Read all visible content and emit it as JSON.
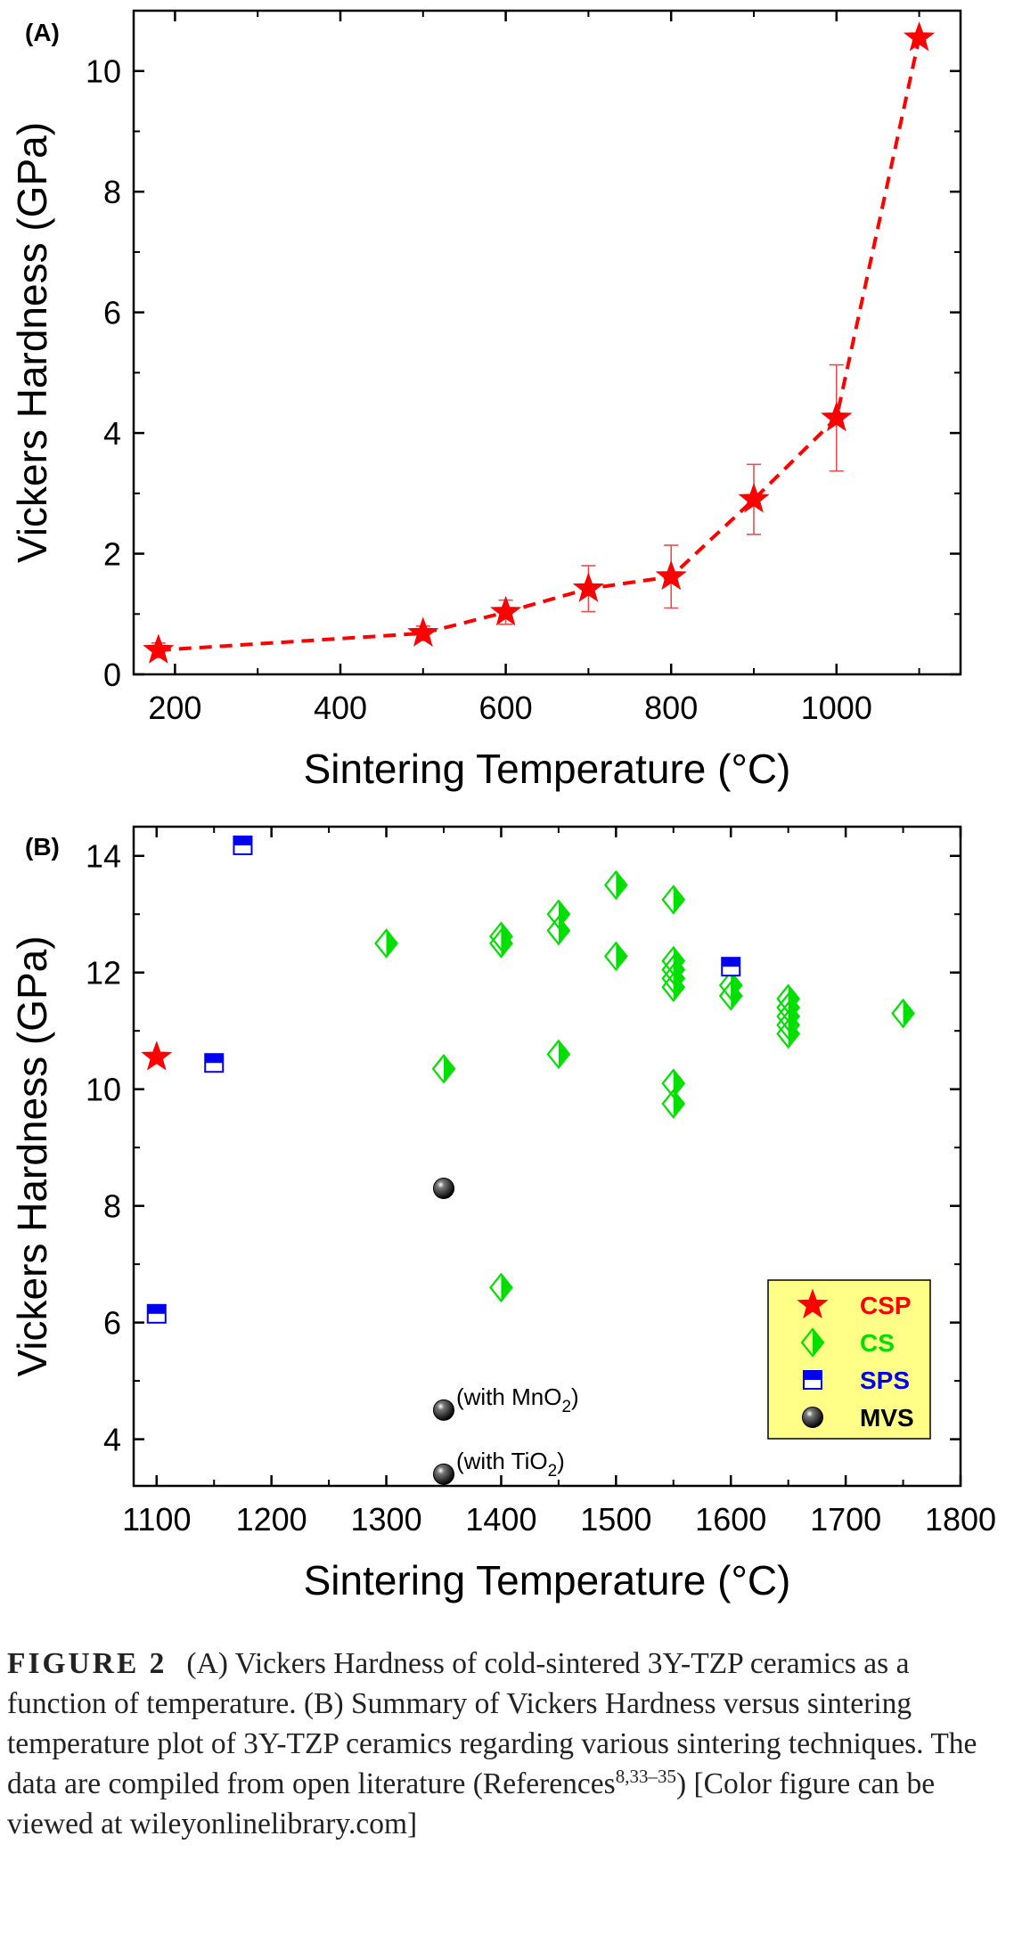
{
  "chart_data": [
    {
      "type": "line",
      "panel_label": "(A)",
      "xlabel": "Sintering Temperature (°C)",
      "ylabel": "Vickers Hardness (GPa)",
      "xlim": [
        150,
        1150
      ],
      "ylim": [
        0,
        11
      ],
      "x_ticks": [
        "200",
        "400",
        "600",
        "800",
        "1000"
      ],
      "y_ticks": [
        "0",
        "2",
        "4",
        "6",
        "8",
        "10"
      ],
      "grid": false,
      "series": [
        {
          "color": "#ff0000",
          "marker": "star",
          "line": "dashed",
          "points": [
            {
              "x": 180,
              "y": 0.4,
              "err": 0.12
            },
            {
              "x": 500,
              "y": 0.68,
              "err": 0.12
            },
            {
              "x": 600,
              "y": 1.03,
              "err": 0.2
            },
            {
              "x": 700,
              "y": 1.42,
              "err": 0.38
            },
            {
              "x": 800,
              "y": 1.62,
              "err": 0.52
            },
            {
              "x": 900,
              "y": 2.9,
              "err": 0.58
            },
            {
              "x": 1000,
              "y": 4.25,
              "err": 0.88
            },
            {
              "x": 1100,
              "y": 10.55,
              "err": 0.05
            }
          ]
        }
      ]
    },
    {
      "type": "scatter",
      "panel_label": "(B)",
      "xlabel": "Sintering Temperature (°C)",
      "ylabel": "Vickers Hardness (GPa)",
      "xlim": [
        1080,
        1800
      ],
      "ylim": [
        3.2,
        14.5
      ],
      "x_ticks": [
        "1100",
        "1200",
        "1300",
        "1400",
        "1500",
        "1600",
        "1700",
        "1800"
      ],
      "y_ticks": [
        "4",
        "6",
        "8",
        "10",
        "12",
        "14"
      ],
      "grid": false,
      "legend_position": "bottom-right",
      "series": [
        {
          "name": "CSP",
          "color": "#ff0000",
          "marker": "star",
          "points": [
            {
              "x": 1100,
              "y": 10.55
            }
          ]
        },
        {
          "name": "CS",
          "color": "#00e000",
          "marker": "half-diamond",
          "points": [
            {
              "x": 1300,
              "y": 12.5
            },
            {
              "x": 1350,
              "y": 10.35
            },
            {
              "x": 1400,
              "y": 12.62
            },
            {
              "x": 1400,
              "y": 12.5
            },
            {
              "x": 1400,
              "y": 6.6
            },
            {
              "x": 1450,
              "y": 13.0
            },
            {
              "x": 1450,
              "y": 12.72
            },
            {
              "x": 1450,
              "y": 10.6
            },
            {
              "x": 1500,
              "y": 13.5
            },
            {
              "x": 1500,
              "y": 12.28
            },
            {
              "x": 1550,
              "y": 13.25
            },
            {
              "x": 1550,
              "y": 12.2
            },
            {
              "x": 1550,
              "y": 12.05
            },
            {
              "x": 1550,
              "y": 11.9
            },
            {
              "x": 1550,
              "y": 11.75
            },
            {
              "x": 1550,
              "y": 10.1
            },
            {
              "x": 1550,
              "y": 9.75
            },
            {
              "x": 1600,
              "y": 11.78
            },
            {
              "x": 1600,
              "y": 11.6
            },
            {
              "x": 1650,
              "y": 11.55
            },
            {
              "x": 1650,
              "y": 11.4
            },
            {
              "x": 1650,
              "y": 11.25
            },
            {
              "x": 1650,
              "y": 11.1
            },
            {
              "x": 1650,
              "y": 10.95
            },
            {
              "x": 1750,
              "y": 11.3
            }
          ]
        },
        {
          "name": "SPS",
          "color": "#0000ee",
          "marker": "half-square",
          "points": [
            {
              "x": 1100,
              "y": 6.15
            },
            {
              "x": 1150,
              "y": 10.45
            },
            {
              "x": 1175,
              "y": 14.18
            },
            {
              "x": 1600,
              "y": 12.1
            }
          ]
        },
        {
          "name": "MVS",
          "color": "#000000",
          "marker": "sphere",
          "points": [
            {
              "x": 1350,
              "y": 8.3,
              "label": ""
            },
            {
              "x": 1350,
              "y": 4.5,
              "label": "(with MnO2)"
            },
            {
              "x": 1350,
              "y": 3.4,
              "label": "(with TiO2)"
            }
          ]
        }
      ]
    }
  ],
  "caption": {
    "label": "FIGURE 2",
    "text_html": "(A) Vickers Hardness of cold-sintered 3Y-TZP ceramics as a function of temperature. (B) Summary of Vickers Hardness versus sintering temperature plot of 3Y-TZP ceramics regarding various sintering techniques. The data are compiled from open literature (References<sup>8,33–35</sup>) [Color figure can be viewed at wileyonlinelibrary.com]"
  }
}
